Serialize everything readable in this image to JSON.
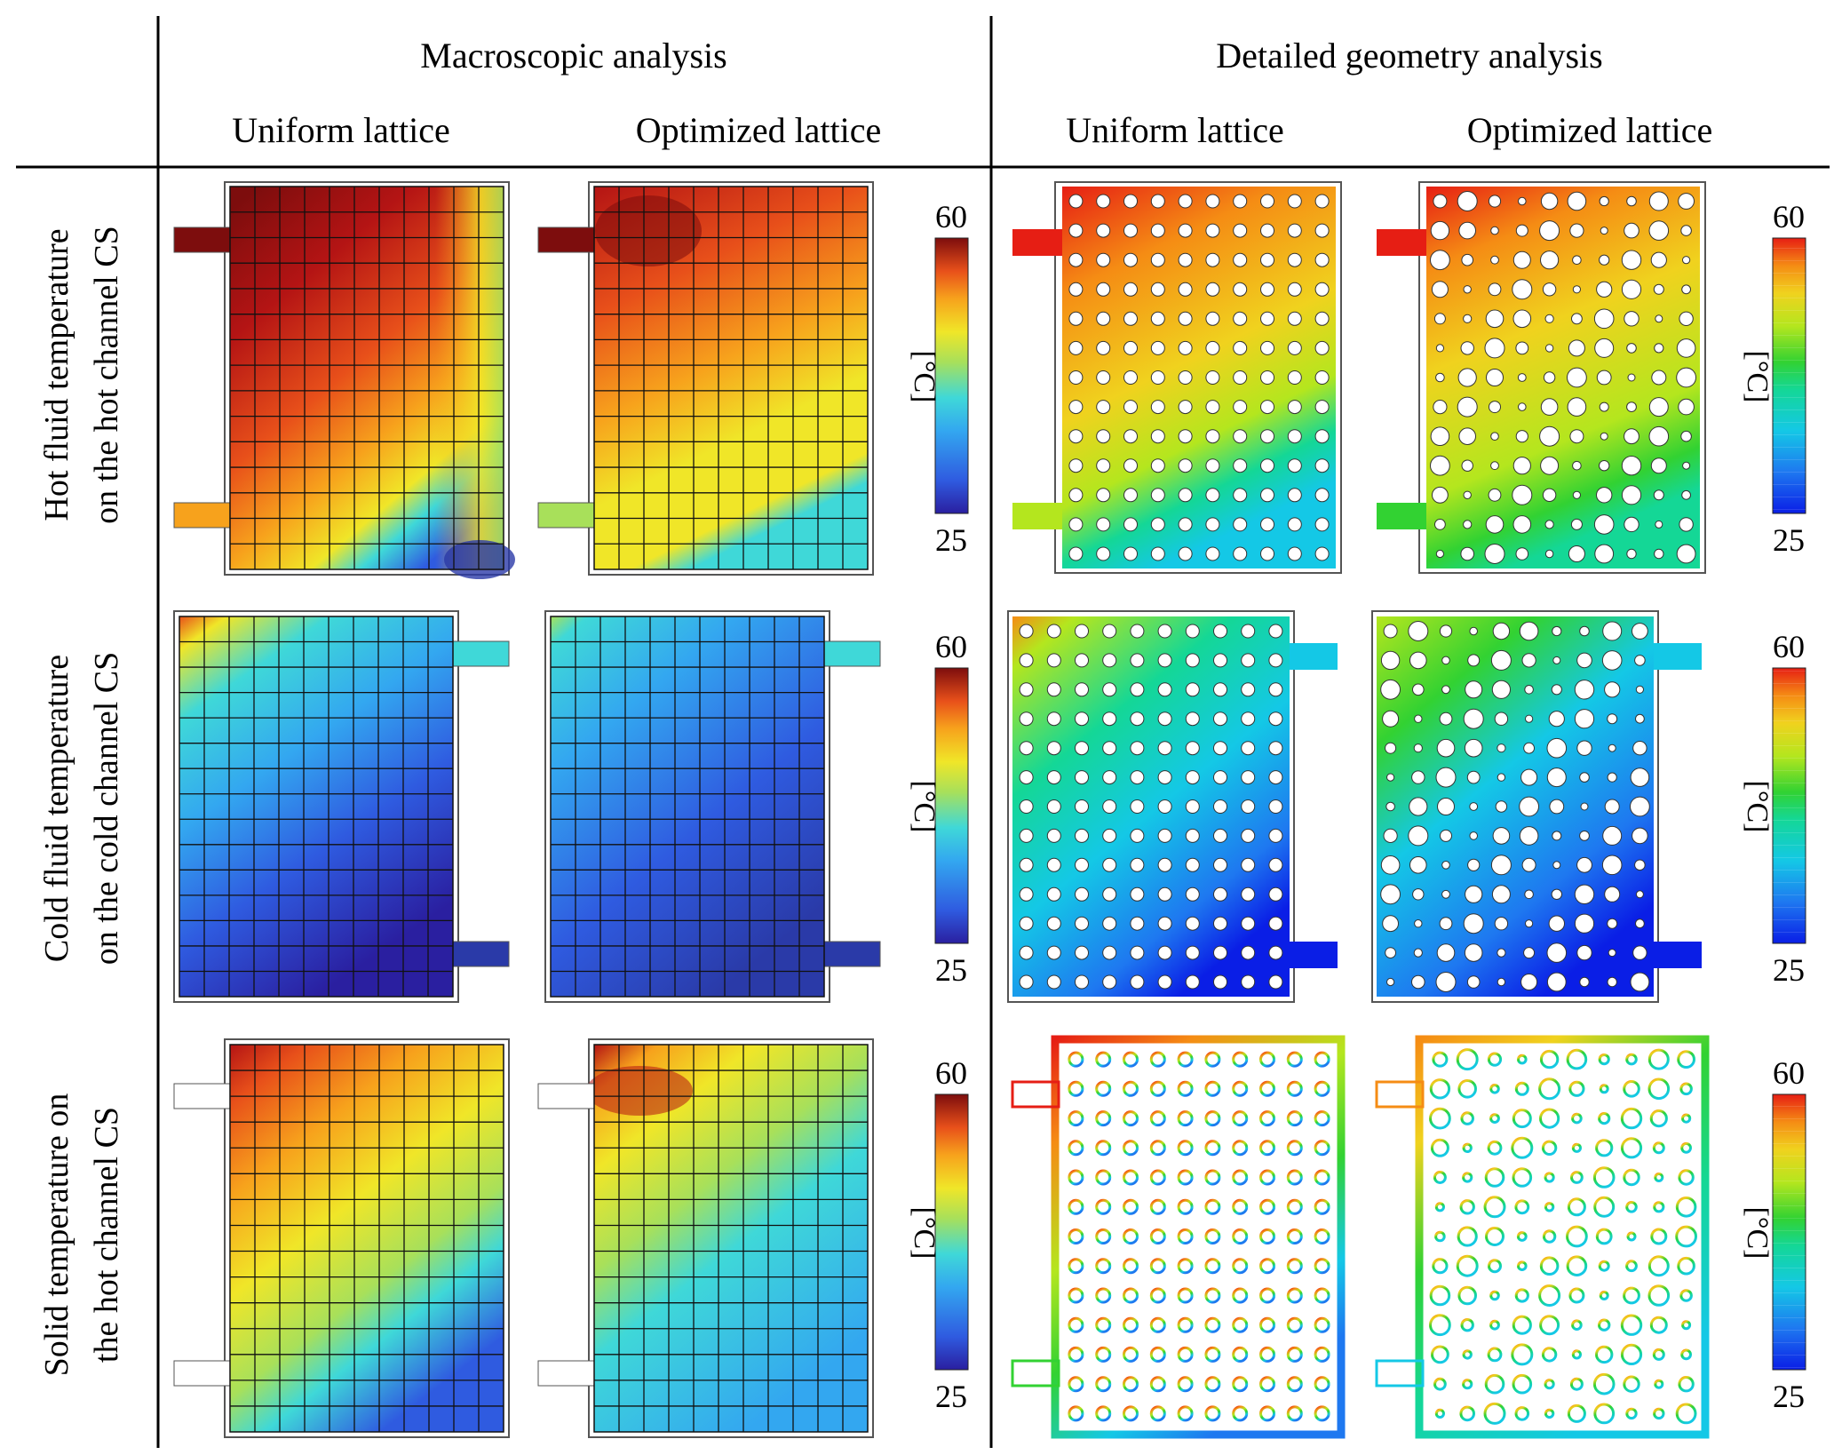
{
  "headers": {
    "macroscopic": "Macroscopic analysis",
    "detailed": "Detailed geometry analysis",
    "uniform_1": "Uniform lattice",
    "optimized_1": "Optimized lattice",
    "uniform_2": "Uniform lattice",
    "optimized_2": "Optimized lattice"
  },
  "rows": [
    {
      "label_line1": "Hot fluid temperature",
      "label_line2": "on the hot channel CS"
    },
    {
      "label_line1": "Cold fluid temperature",
      "label_line2": "on the cold channel CS"
    },
    {
      "label_line1": "Solid temperature on",
      "label_line2": "the hot channel CS"
    }
  ],
  "colorbar": {
    "max": "60",
    "min": "25",
    "unit": "[°C]"
  },
  "colors": {
    "jet": [
      "#2a1fa0",
      "#2f5be0",
      "#33a7f0",
      "#3fd8d8",
      "#a8e05a",
      "#f0e628",
      "#f7a21c",
      "#e8501a",
      "#b41414",
      "#7d0d0d"
    ],
    "rainbow": [
      "#0a1ee6",
      "#1e78f0",
      "#14c8e6",
      "#14d796",
      "#32d232",
      "#b4e61e",
      "#f0d21e",
      "#f58c14",
      "#e61e14"
    ]
  }
}
